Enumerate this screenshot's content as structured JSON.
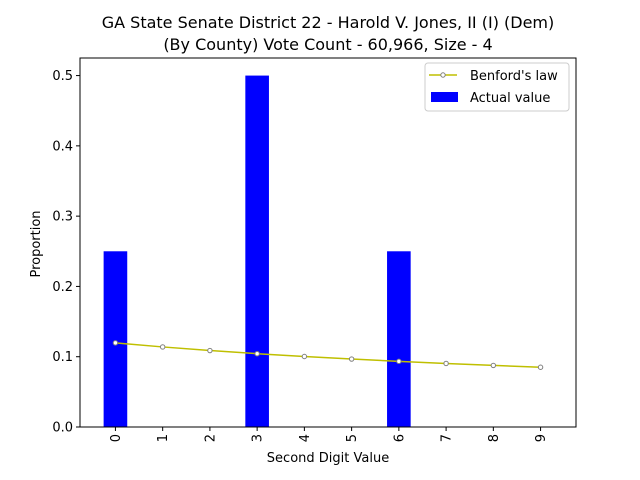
{
  "chart_data": {
    "type": "bar",
    "title_line1": "GA State Senate District 22 - Harold V. Jones, II (I) (Dem)",
    "title_line2": "(By County) Vote Count - 60,966, Size - 4",
    "xlabel": "Second Digit Value",
    "ylabel": "Proportion",
    "categories": [
      "0",
      "1",
      "2",
      "3",
      "4",
      "5",
      "6",
      "7",
      "8",
      "9"
    ],
    "yticks": [
      "0.0",
      "0.1",
      "0.2",
      "0.3",
      "0.4",
      "0.5"
    ],
    "ylim": [
      0,
      0.525
    ],
    "grid": false,
    "legend_position": "top-right",
    "series": [
      {
        "name": "Actual value",
        "kind": "bar",
        "color": "#0000ff",
        "values": [
          0.25,
          0,
          0,
          0.5,
          0,
          0,
          0.25,
          0,
          0,
          0
        ]
      },
      {
        "name": "Benford's law",
        "kind": "line",
        "color": "#bfbf00",
        "marker_edge": "#808080",
        "values": [
          0.1197,
          0.1139,
          0.1088,
          0.1043,
          0.1003,
          0.0967,
          0.0934,
          0.0904,
          0.0876,
          0.085
        ]
      }
    ]
  }
}
